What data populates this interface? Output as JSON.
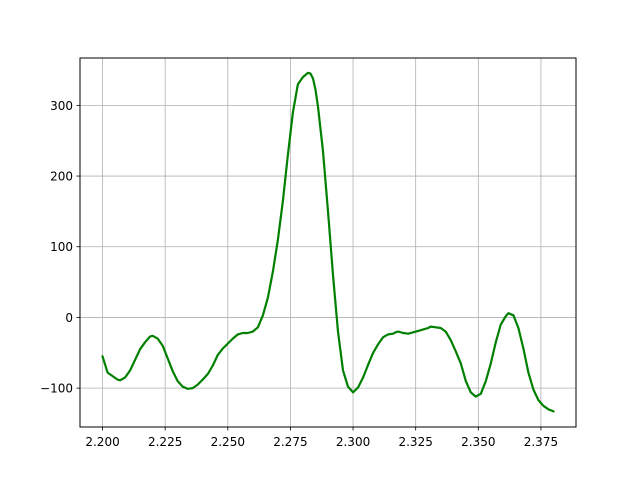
{
  "chart_data": {
    "type": "line",
    "title": "",
    "xlabel": "",
    "ylabel": "",
    "xlim": [
      2.191,
      2.389
    ],
    "ylim": [
      -155,
      367
    ],
    "xticks": [
      2.2,
      2.225,
      2.25,
      2.275,
      2.3,
      2.325,
      2.35,
      2.375
    ],
    "xtick_labels": [
      "2.200",
      "2.225",
      "2.250",
      "2.275",
      "2.300",
      "2.325",
      "2.350",
      "2.375"
    ],
    "yticks": [
      -100,
      0,
      100,
      200,
      300
    ],
    "ytick_labels": [
      "−100",
      "0",
      "100",
      "200",
      "300"
    ],
    "grid": true,
    "series": [
      {
        "color": "#008000",
        "x": [
          2.2,
          2.202,
          2.204,
          2.206,
          2.207,
          2.209,
          2.211,
          2.213,
          2.215,
          2.217,
          2.219,
          2.22,
          2.222,
          2.224,
          2.226,
          2.228,
          2.23,
          2.232,
          2.234,
          2.236,
          2.238,
          2.24,
          2.242,
          2.244,
          2.246,
          2.248,
          2.25,
          2.252,
          2.254,
          2.256,
          2.258,
          2.26,
          2.262,
          2.264,
          2.266,
          2.268,
          2.27,
          2.272,
          2.274,
          2.276,
          2.278,
          2.28,
          2.282,
          2.283,
          2.284,
          2.285,
          2.286,
          2.288,
          2.29,
          2.292,
          2.294,
          2.296,
          2.298,
          2.3,
          2.302,
          2.304,
          2.306,
          2.308,
          2.31,
          2.312,
          2.314,
          2.316,
          2.317,
          2.318,
          2.32,
          2.322,
          2.324,
          2.326,
          2.328,
          2.33,
          2.331,
          2.333,
          2.335,
          2.337,
          2.339,
          2.341,
          2.343,
          2.345,
          2.347,
          2.349,
          2.351,
          2.353,
          2.355,
          2.357,
          2.359,
          2.361,
          2.362,
          2.364,
          2.366,
          2.368,
          2.37,
          2.372,
          2.374,
          2.376,
          2.378,
          2.38
        ],
        "y": [
          -55,
          -78,
          -83,
          -88,
          -89,
          -85,
          -75,
          -60,
          -45,
          -35,
          -27,
          -26,
          -30,
          -40,
          -58,
          -76,
          -90,
          -98,
          -101,
          -100,
          -95,
          -88,
          -80,
          -68,
          -53,
          -44,
          -37,
          -30,
          -24,
          -22,
          -22,
          -20,
          -14,
          3,
          28,
          65,
          110,
          165,
          230,
          290,
          330,
          340,
          346,
          345,
          338,
          322,
          298,
          235,
          150,
          60,
          -20,
          -75,
          -98,
          -106,
          -99,
          -85,
          -67,
          -50,
          -38,
          -28,
          -24,
          -23,
          -21,
          -20,
          -22,
          -23,
          -21,
          -19,
          -17,
          -15,
          -13,
          -14,
          -15,
          -20,
          -32,
          -48,
          -65,
          -90,
          -106,
          -112,
          -108,
          -90,
          -65,
          -35,
          -10,
          2,
          6,
          3,
          -15,
          -44,
          -78,
          -102,
          -117,
          -125,
          -130,
          -133
        ]
      }
    ]
  }
}
